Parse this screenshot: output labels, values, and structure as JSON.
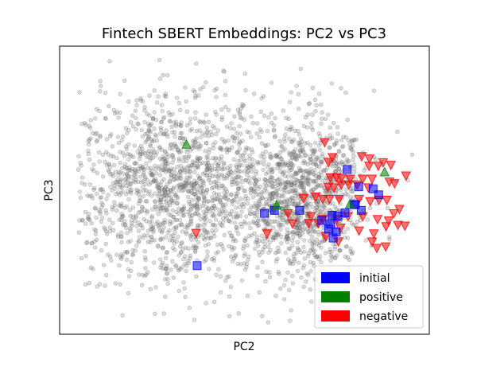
{
  "chart_data": {
    "type": "scatter",
    "title": "Fintech SBERT Embeddings: PC2 vs PC3",
    "xlabel": "PC2",
    "ylabel": "PC3",
    "xlim": [
      0,
      1
    ],
    "ylim": [
      0,
      1
    ],
    "show_ticks": false,
    "grid": false,
    "legend_position": "lower-right",
    "background_points": {
      "color": "#808080",
      "count": 2600
    },
    "series": [
      {
        "name": "initial",
        "color": "#0000ff",
        "marker": "square",
        "points": [
          [
            0.778,
            0.572
          ],
          [
            0.809,
            0.512
          ],
          [
            0.848,
            0.505
          ],
          [
            0.863,
            0.484
          ],
          [
            0.797,
            0.45
          ],
          [
            0.8,
            0.45
          ],
          [
            0.772,
            0.421
          ],
          [
            0.737,
            0.413
          ],
          [
            0.753,
            0.41
          ],
          [
            0.649,
            0.43
          ],
          [
            0.581,
            0.43
          ],
          [
            0.554,
            0.42
          ],
          [
            0.709,
            0.395
          ],
          [
            0.733,
            0.382
          ],
          [
            0.728,
            0.365
          ],
          [
            0.748,
            0.355
          ],
          [
            0.74,
            0.334
          ],
          [
            0.372,
            0.238
          ],
          [
            0.816,
            0.43
          ]
        ]
      },
      {
        "name": "positive",
        "color": "#008000",
        "marker": "triangle-up",
        "points": [
          [
            0.343,
            0.658
          ],
          [
            0.879,
            0.562
          ],
          [
            0.785,
            0.45
          ],
          [
            0.587,
            0.448
          ]
        ]
      },
      {
        "name": "negative",
        "color": "#ff0000",
        "marker": "triangle-down",
        "points": [
          [
            0.717,
            0.667
          ],
          [
            0.738,
            0.615
          ],
          [
            0.727,
            0.598
          ],
          [
            0.838,
            0.61
          ],
          [
            0.817,
            0.618
          ],
          [
            0.837,
            0.585
          ],
          [
            0.862,
            0.585
          ],
          [
            0.875,
            0.597
          ],
          [
            0.896,
            0.588
          ],
          [
            0.937,
            0.551
          ],
          [
            0.732,
            0.545
          ],
          [
            0.749,
            0.545
          ],
          [
            0.762,
            0.542
          ],
          [
            0.786,
            0.54
          ],
          [
            0.82,
            0.54
          ],
          [
            0.845,
            0.54
          ],
          [
            0.892,
            0.53
          ],
          [
            0.906,
            0.524
          ],
          [
            0.726,
            0.512
          ],
          [
            0.742,
            0.51
          ],
          [
            0.762,
            0.52
          ],
          [
            0.782,
            0.52
          ],
          [
            0.805,
            0.52
          ],
          [
            0.835,
            0.51
          ],
          [
            0.66,
            0.473
          ],
          [
            0.692,
            0.478
          ],
          [
            0.712,
            0.47
          ],
          [
            0.73,
            0.47
          ],
          [
            0.756,
            0.47
          ],
          [
            0.81,
            0.47
          ],
          [
            0.84,
            0.462
          ],
          [
            0.864,
            0.467
          ],
          [
            0.885,
            0.467
          ],
          [
            0.919,
            0.435
          ],
          [
            0.904,
            0.42
          ],
          [
            0.618,
            0.42
          ],
          [
            0.68,
            0.41
          ],
          [
            0.712,
            0.4
          ],
          [
            0.75,
            0.4
          ],
          [
            0.78,
            0.41
          ],
          [
            0.82,
            0.41
          ],
          [
            0.86,
            0.4
          ],
          [
            0.89,
            0.395
          ],
          [
            0.915,
            0.38
          ],
          [
            0.883,
            0.375
          ],
          [
            0.934,
            0.377
          ],
          [
            0.63,
            0.385
          ],
          [
            0.674,
            0.386
          ],
          [
            0.7,
            0.386
          ],
          [
            0.76,
            0.37
          ],
          [
            0.81,
            0.36
          ],
          [
            0.85,
            0.35
          ],
          [
            0.72,
            0.34
          ],
          [
            0.754,
            0.322
          ],
          [
            0.845,
            0.322
          ],
          [
            0.369,
            0.352
          ],
          [
            0.561,
            0.35
          ],
          [
            0.882,
            0.305
          ],
          [
            0.858,
            0.3
          ]
        ]
      }
    ]
  }
}
